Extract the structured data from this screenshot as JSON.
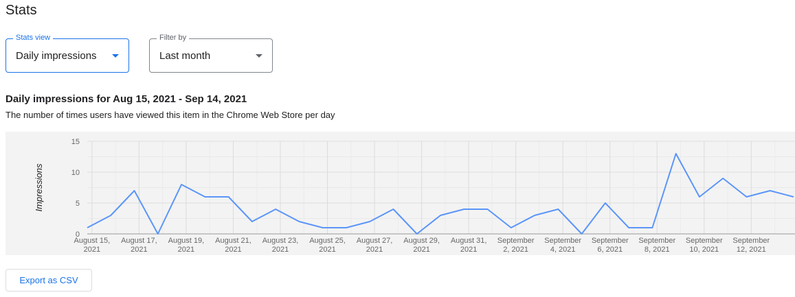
{
  "page_title": "Stats",
  "stats_view": {
    "label": "Stats view",
    "value": "Daily impressions"
  },
  "filter_by": {
    "label": "Filter by",
    "value": "Last month"
  },
  "heading": "Daily impressions for Aug 15, 2021 - Sep 14, 2021",
  "subtitle": "The number of times users have viewed this item in the Chrome Web Store per day",
  "export_label": "Export as CSV",
  "colors": {
    "accent": "#1a73e8",
    "line": "#5b95f9",
    "plot_bg": "#f3f3f3"
  },
  "chart_data": {
    "type": "line",
    "ylabel": "Impressions",
    "ylim": [
      0,
      15
    ],
    "yticks": [
      0,
      5,
      10,
      15
    ],
    "grid": true,
    "x": [
      "2021-08-15",
      "2021-08-16",
      "2021-08-17",
      "2021-08-18",
      "2021-08-19",
      "2021-08-20",
      "2021-08-21",
      "2021-08-22",
      "2021-08-23",
      "2021-08-24",
      "2021-08-25",
      "2021-08-26",
      "2021-08-27",
      "2021-08-28",
      "2021-08-29",
      "2021-08-30",
      "2021-08-31",
      "2021-09-01",
      "2021-09-02",
      "2021-09-03",
      "2021-09-04",
      "2021-09-05",
      "2021-09-06",
      "2021-09-07",
      "2021-09-08",
      "2021-09-09",
      "2021-09-10",
      "2021-09-11",
      "2021-09-12",
      "2021-09-13",
      "2021-09-14"
    ],
    "values": [
      1,
      3,
      7,
      0,
      8,
      6,
      6,
      2,
      4,
      2,
      1,
      1,
      2,
      4,
      0,
      3,
      4,
      4,
      1,
      3,
      4,
      0,
      5,
      1,
      1,
      13,
      6,
      9,
      6,
      7,
      6
    ],
    "xtick_labels": [
      [
        "August 15,",
        "2021"
      ],
      [
        "August 17,",
        "2021"
      ],
      [
        "August 19,",
        "2021"
      ],
      [
        "August 21,",
        "2021"
      ],
      [
        "August 23,",
        "2021"
      ],
      [
        "August 25,",
        "2021"
      ],
      [
        "August 27,",
        "2021"
      ],
      [
        "August 29,",
        "2021"
      ],
      [
        "August 31,",
        "2021"
      ],
      [
        "September",
        "2, 2021"
      ],
      [
        "September",
        "4, 2021"
      ],
      [
        "September",
        "6, 2021"
      ],
      [
        "September",
        "8, 2021"
      ],
      [
        "September",
        "10, 2021"
      ],
      [
        "September",
        "12, 2021"
      ]
    ]
  }
}
